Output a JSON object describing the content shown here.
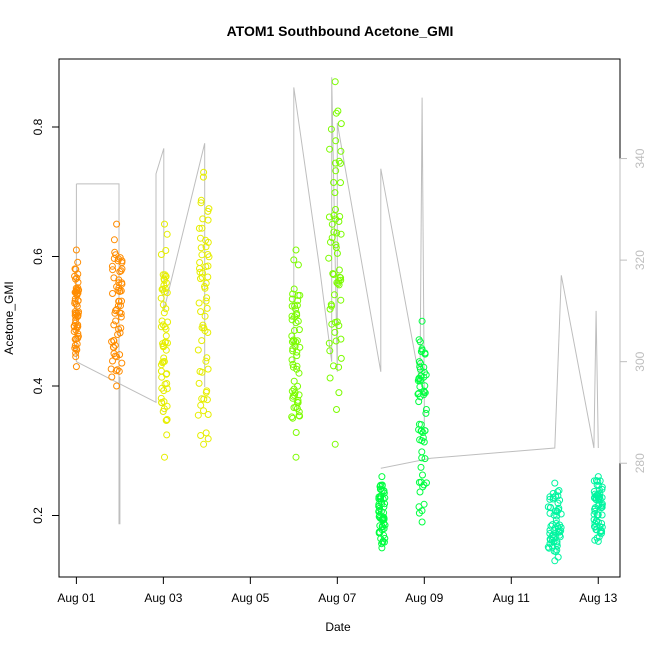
{
  "chart_data": {
    "type": "scatter",
    "title": "ATOM1 Southbound Acetone_GMI",
    "xlabel": "Date",
    "ylabel": "Acetone_GMI",
    "x_ticks": [
      "Aug 01",
      "Aug 03",
      "Aug 05",
      "Aug 07",
      "Aug 09",
      "Aug 11",
      "Aug 13"
    ],
    "x_tick_days": [
      1,
      3,
      5,
      7,
      9,
      11,
      13
    ],
    "xlim": [
      0.6,
      13.5
    ],
    "ylim": [
      0.105,
      0.905
    ],
    "y_ticks": [
      0.2,
      0.4,
      0.6,
      0.8
    ],
    "right_axis": {
      "ticks": [
        280,
        300,
        320,
        340
      ],
      "ylim": [
        257.6,
        359.6
      ],
      "color": "#bebebe",
      "series": [
        {
          "values": [
            [
              1.0,
              335
            ],
            [
              1.98,
              335
            ],
            [
              1.98,
              296
            ],
            [
              1.98,
              268
            ],
            [
              2.0,
              297
            ],
            [
              2.0,
              268
            ]
          ]
        },
        {
          "values": [
            [
              1.0,
              335
            ],
            [
              1.0,
              300
            ],
            [
              2.83,
              292
            ],
            [
              2.83,
              337
            ],
            [
              3.01,
              342
            ],
            [
              3.01,
              310
            ],
            [
              3.95,
              343
            ],
            [
              3.95,
              295
            ]
          ]
        },
        {
          "values": [
            [
              6.0,
              300
            ],
            [
              6.0,
              318
            ],
            [
              6.0,
              354
            ],
            [
              6.6,
              318
            ],
            [
              6.87,
              300
            ],
            [
              6.87,
              356
            ],
            [
              7.0,
              298
            ],
            [
              7.0,
              347
            ],
            [
              8.0,
              298
            ],
            [
              8.0,
              338
            ],
            [
              8.9,
              296
            ],
            [
              8.95,
              352
            ],
            [
              9.0,
              293
            ],
            [
              9.0,
              286
            ]
          ]
        },
        {
          "values": [
            [
              8.0,
              279
            ],
            [
              9.15,
              281
            ],
            [
              12.0,
              283
            ],
            [
              12.15,
              317
            ],
            [
              12.9,
              283
            ],
            [
              12.95,
              310
            ],
            [
              13.0,
              283
            ]
          ]
        }
      ]
    },
    "series": [
      {
        "color": "#ff8c00",
        "clusters": [
          {
            "x": [
              0.95,
              1.05
            ],
            "y": [
              0.43,
              0.61
            ]
          },
          {
            "x": [
              1.8,
              2.05
            ],
            "y": [
              0.4,
              0.65
            ]
          }
        ]
      },
      {
        "color": "#e6ee00",
        "clusters": [
          {
            "x": [
              2.95,
              3.1
            ],
            "y": [
              0.29,
              0.65
            ]
          },
          {
            "x": [
              3.8,
              4.05
            ],
            "y": [
              0.31,
              0.73
            ]
          }
        ]
      },
      {
        "color": "#7cfc00",
        "clusters": [
          {
            "x": [
              5.95,
              6.15
            ],
            "y": [
              0.29,
              0.61
            ]
          },
          {
            "x": [
              6.8,
              7.1
            ],
            "y": [
              0.31,
              0.87
            ]
          }
        ]
      },
      {
        "color": "#00ff40",
        "clusters": [
          {
            "x": [
              7.95,
              8.1
            ],
            "y": [
              0.15,
              0.26
            ]
          },
          {
            "x": [
              8.85,
              9.05
            ],
            "y": [
              0.19,
              0.5
            ]
          }
        ]
      },
      {
        "color": "#00f5a0",
        "clusters": [
          {
            "x": [
              11.85,
              12.15
            ],
            "y": [
              0.13,
              0.25
            ]
          },
          {
            "x": [
              12.9,
              13.1
            ],
            "y": [
              0.16,
              0.26
            ]
          }
        ]
      }
    ]
  }
}
